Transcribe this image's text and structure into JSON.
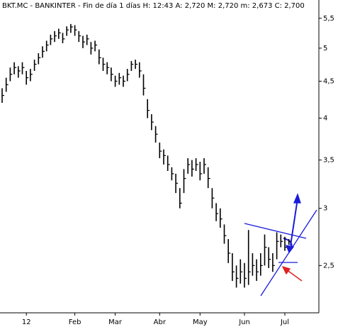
{
  "chart_data": {
    "type": "ohlc",
    "title": "BKT.MC - BANKINTER - Fin de día 1 días H: 12:43 A: 2,720 M: 2,720 m: 2,673 C: 2,700",
    "categories": [
      null,
      null,
      null,
      null,
      null,
      null,
      "12",
      null,
      null,
      null,
      null,
      null,
      null,
      null,
      null,
      null,
      null,
      null,
      "Feb",
      null,
      null,
      null,
      null,
      null,
      null,
      null,
      null,
      null,
      "Mar",
      null,
      null,
      null,
      null,
      null,
      null,
      null,
      null,
      null,
      null,
      "Abr",
      null,
      null,
      null,
      null,
      null,
      null,
      null,
      null,
      null,
      "May",
      null,
      null,
      null,
      null,
      null,
      null,
      null,
      null,
      null,
      null,
      "Jun",
      null,
      null,
      null,
      null,
      null,
      null,
      null,
      null,
      null,
      "Jul",
      null
    ],
    "high": [
      4.4,
      4.55,
      4.7,
      4.78,
      4.72,
      4.78,
      4.65,
      4.68,
      4.82,
      4.92,
      5.03,
      5.12,
      5.22,
      5.28,
      5.32,
      5.25,
      5.36,
      5.4,
      5.38,
      5.28,
      5.2,
      5.22,
      5.1,
      5.12,
      4.98,
      4.85,
      4.78,
      4.7,
      4.58,
      4.62,
      4.58,
      4.68,
      4.8,
      4.82,
      4.78,
      4.6,
      4.25,
      4.05,
      3.9,
      3.7,
      3.62,
      3.55,
      3.42,
      3.35,
      3.2,
      3.4,
      3.52,
      3.5,
      3.52,
      3.48,
      3.52,
      3.42,
      3.2,
      3.05,
      3.0,
      2.85,
      2.72,
      2.6,
      2.5,
      2.55,
      2.52,
      2.8,
      2.6,
      2.55,
      2.6,
      2.76,
      2.65,
      2.6,
      2.78,
      2.76,
      2.74,
      2.72
    ],
    "low": [
      4.2,
      4.35,
      4.5,
      4.6,
      4.55,
      4.6,
      4.45,
      4.5,
      4.65,
      4.75,
      4.85,
      4.95,
      5.05,
      5.1,
      5.15,
      5.08,
      5.2,
      5.25,
      5.2,
      5.1,
      5.0,
      5.05,
      4.9,
      4.95,
      4.75,
      4.65,
      4.6,
      4.5,
      4.42,
      4.45,
      4.42,
      4.5,
      4.65,
      4.68,
      4.55,
      4.3,
      4.0,
      3.85,
      3.7,
      3.52,
      3.45,
      3.38,
      3.28,
      3.15,
      3.0,
      3.15,
      3.35,
      3.32,
      3.38,
      3.28,
      3.35,
      3.2,
      3.0,
      2.88,
      2.82,
      2.68,
      2.52,
      2.38,
      2.33,
      2.36,
      2.33,
      2.35,
      2.42,
      2.38,
      2.42,
      2.5,
      2.48,
      2.45,
      2.55,
      2.65,
      2.62,
      2.67
    ],
    "close": [
      4.3,
      4.45,
      4.6,
      4.7,
      4.65,
      4.7,
      4.55,
      4.6,
      4.75,
      4.85,
      4.95,
      5.05,
      5.15,
      5.2,
      5.25,
      5.15,
      5.3,
      5.35,
      5.3,
      5.2,
      5.1,
      5.15,
      5.0,
      5.05,
      4.85,
      4.75,
      4.7,
      4.6,
      4.5,
      4.55,
      4.5,
      4.6,
      4.75,
      4.75,
      4.65,
      4.4,
      4.1,
      3.95,
      3.8,
      3.6,
      3.55,
      3.45,
      3.35,
      3.25,
      3.05,
      3.3,
      3.45,
      3.4,
      3.45,
      3.35,
      3.45,
      3.3,
      3.1,
      2.95,
      2.9,
      2.75,
      2.6,
      2.45,
      2.4,
      2.45,
      2.4,
      2.45,
      2.5,
      2.45,
      2.5,
      2.65,
      2.55,
      2.5,
      2.7,
      2.7,
      2.65,
      2.7
    ],
    "color": "#000000",
    "ylim": [
      2.15,
      5.83
    ],
    "log_scale": true,
    "yticks": [
      {
        "value": 2.5,
        "label": "2,5"
      },
      3,
      {
        "value": 3.5,
        "label": "3,5"
      },
      4,
      {
        "value": 4.5,
        "label": "4,5"
      },
      5,
      {
        "value": 5.5,
        "label": "5,5"
      }
    ]
  }
}
